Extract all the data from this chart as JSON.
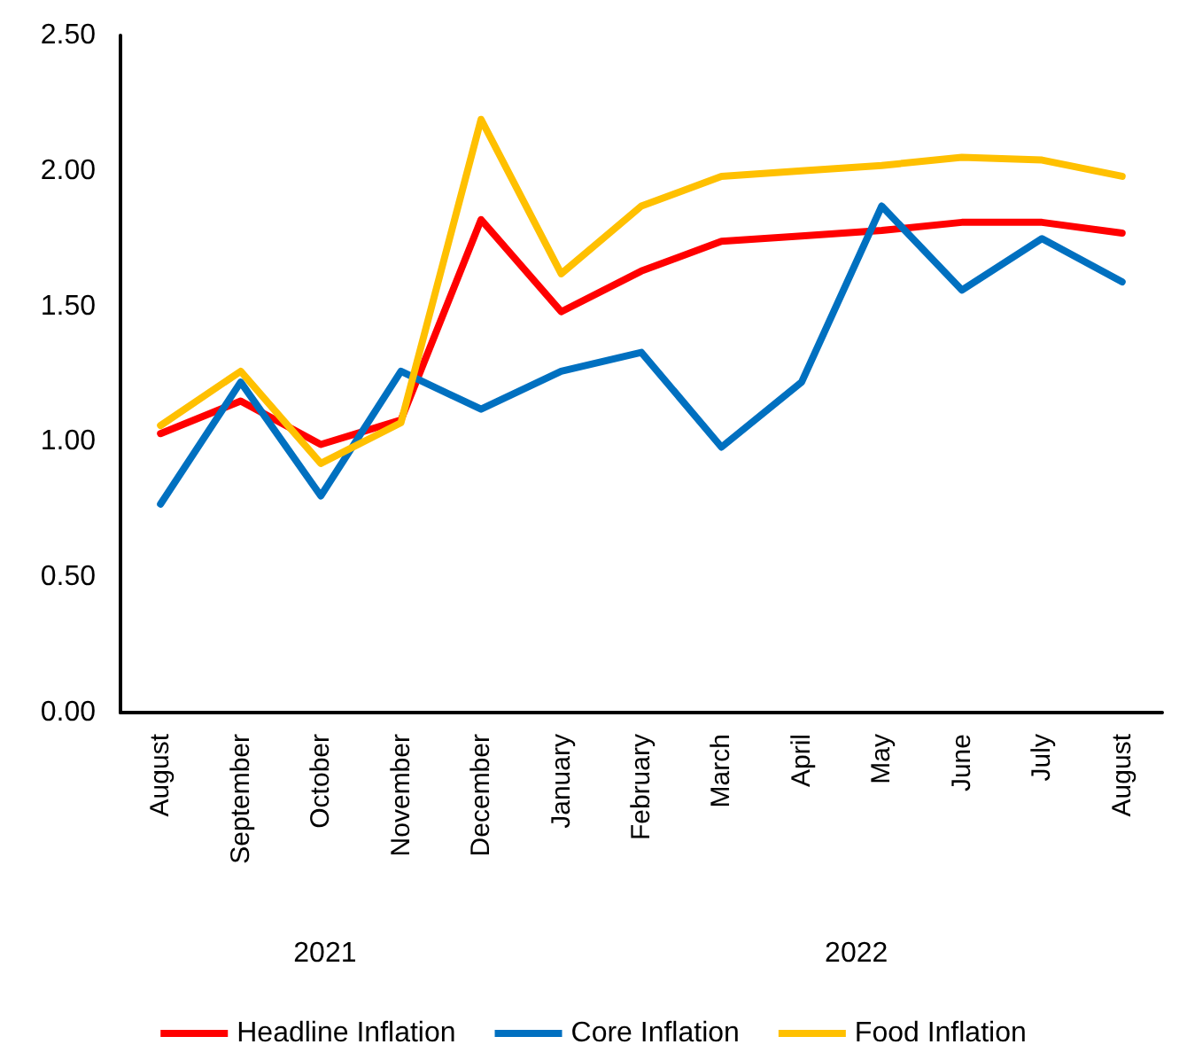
{
  "chart_data": {
    "type": "line",
    "categories": [
      "August",
      "September",
      "October",
      "November",
      "December",
      "January",
      "February",
      "March",
      "April",
      "May",
      "June",
      "July",
      "August"
    ],
    "series": [
      {
        "name": "Headline Inflation",
        "color": "#ff0000",
        "values": [
          1.03,
          1.15,
          0.99,
          1.08,
          1.82,
          1.48,
          1.63,
          1.74,
          1.76,
          1.78,
          1.81,
          1.81,
          1.77
        ]
      },
      {
        "name": "Core Inflation",
        "color": "#0070c0",
        "values": [
          0.77,
          1.22,
          0.8,
          1.26,
          1.12,
          1.26,
          1.33,
          0.98,
          1.22,
          1.87,
          1.56,
          1.75,
          1.59
        ]
      },
      {
        "name": "Food Inflation",
        "color": "#ffc000",
        "values": [
          1.06,
          1.26,
          0.92,
          1.07,
          2.19,
          1.62,
          1.87,
          1.98,
          2.0,
          2.02,
          2.05,
          2.04,
          1.98
        ]
      }
    ],
    "ylim": [
      0,
      2.5
    ],
    "yticks": [
      {
        "value": 0,
        "label": "0.00"
      },
      {
        "value": 0.5,
        "label": "0.50"
      },
      {
        "value": 1,
        "label": "1.00"
      },
      {
        "value": 1.5,
        "label": "1.50"
      },
      {
        "value": 2,
        "label": "2.00"
      },
      {
        "value": 2.5,
        "label": "2.50"
      }
    ],
    "annotations": [
      "2021",
      "2022"
    ],
    "grid": false,
    "legend": "bottom",
    "marker": "none",
    "line_style": "solid"
  }
}
